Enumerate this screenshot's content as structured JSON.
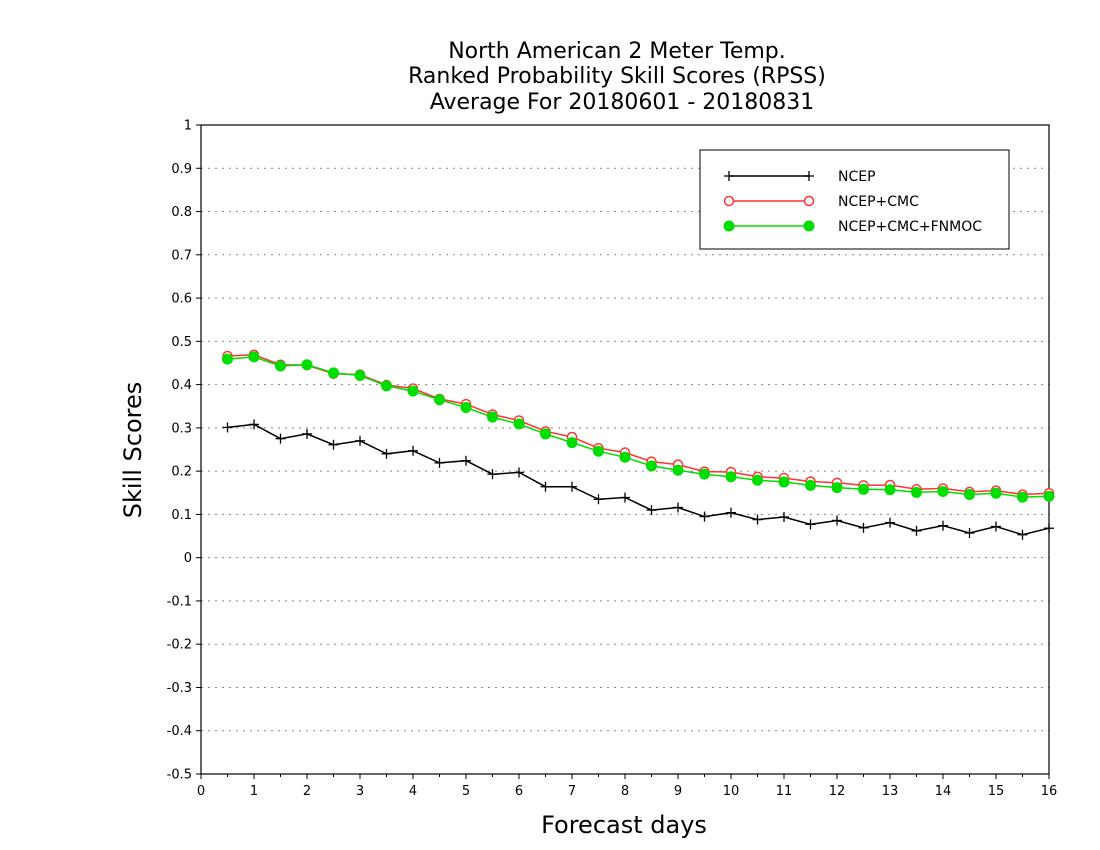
{
  "chart_data": {
    "type": "line",
    "title_lines": [
      "North American 2 Meter Temp.",
      "Ranked Probability Skill Scores (RPSS)",
      "Average For 20180601 - 20180831"
    ],
    "xlabel": "Forecast days",
    "ylabel": "Skill Scores",
    "xlim": [
      0,
      16
    ],
    "ylim": [
      -0.5,
      1
    ],
    "x_ticks": [
      0,
      1,
      2,
      3,
      4,
      5,
      6,
      7,
      8,
      9,
      10,
      11,
      12,
      13,
      14,
      15,
      16
    ],
    "y_ticks": [
      -0.5,
      -0.4,
      -0.3,
      -0.2,
      -0.1,
      0,
      0.1,
      0.2,
      0.3,
      0.4,
      0.5,
      0.6,
      0.7,
      0.8,
      0.9,
      1
    ],
    "y_tick_labels": [
      "-0.5",
      "-0.4",
      "-0.3",
      "-0.2",
      "-0.1",
      "0",
      "0.1",
      "0.2",
      "0.3",
      "0.4",
      "0.5",
      "0.6",
      "0.7",
      "0.8",
      "0.9",
      "1"
    ],
    "grid": "horizontal dotted",
    "legend_position": "top-right",
    "x": [
      0.5,
      1,
      1.5,
      2,
      2.5,
      3,
      3.5,
      4,
      4.5,
      5,
      5.5,
      6,
      6.5,
      7,
      7.5,
      8,
      8.5,
      9,
      9.5,
      10,
      10.5,
      11,
      11.5,
      12,
      12.5,
      13,
      13.5,
      14,
      14.5,
      15,
      15.5,
      16
    ],
    "series": [
      {
        "name": "NCEP",
        "color": "#000000",
        "marker": "plus",
        "values": [
          0.301,
          0.308,
          0.275,
          0.286,
          0.261,
          0.27,
          0.24,
          0.247,
          0.219,
          0.224,
          0.193,
          0.197,
          0.164,
          0.164,
          0.135,
          0.139,
          0.11,
          0.116,
          0.095,
          0.104,
          0.088,
          0.094,
          0.077,
          0.086,
          0.069,
          0.081,
          0.062,
          0.074,
          0.057,
          0.072,
          0.053,
          0.068
        ]
      },
      {
        "name": "NCEP+CMC",
        "color": "#ff3333",
        "marker": "open-circle",
        "values": [
          0.466,
          0.469,
          0.446,
          0.445,
          0.425,
          0.423,
          0.399,
          0.391,
          0.367,
          0.355,
          0.331,
          0.317,
          0.292,
          0.279,
          0.253,
          0.243,
          0.222,
          0.215,
          0.199,
          0.198,
          0.187,
          0.184,
          0.176,
          0.173,
          0.167,
          0.168,
          0.158,
          0.16,
          0.152,
          0.155,
          0.146,
          0.149
        ]
      },
      {
        "name": "NCEP+CMC+FNMOC",
        "color": "#00dd00",
        "marker": "filled-circle",
        "values": [
          0.459,
          0.464,
          0.443,
          0.446,
          0.427,
          0.421,
          0.397,
          0.385,
          0.365,
          0.347,
          0.325,
          0.309,
          0.286,
          0.266,
          0.246,
          0.232,
          0.212,
          0.202,
          0.193,
          0.187,
          0.179,
          0.175,
          0.167,
          0.162,
          0.158,
          0.157,
          0.151,
          0.153,
          0.146,
          0.149,
          0.14,
          0.142
        ]
      }
    ]
  }
}
